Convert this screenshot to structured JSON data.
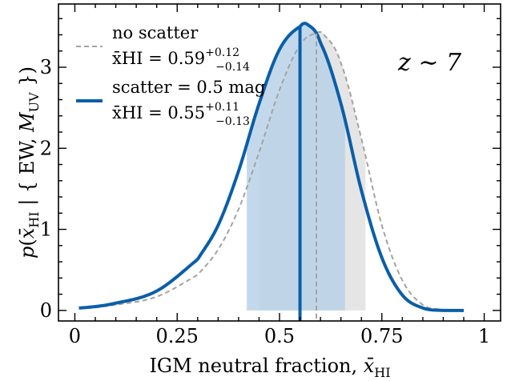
{
  "chart_data": {
    "type": "line",
    "xlabel": "IGM neutral fraction, x̄HI",
    "ylabel": "p(x̄HI | { EW, MUV })",
    "xlim": [
      -0.04,
      1.04
    ],
    "ylim": [
      -0.13,
      3.78
    ],
    "xticks": [
      0,
      0.25,
      0.5,
      0.75,
      1
    ],
    "xtick_labels": [
      "0",
      "0.25",
      "0.5",
      "0.75",
      "1"
    ],
    "yticks": [
      0,
      1,
      2,
      3
    ],
    "ytick_labels": [
      "0",
      "1",
      "2",
      "3"
    ],
    "annotation": "z ∼ 7",
    "legend_position": "top-left",
    "series": [
      {
        "name": "no scatter",
        "style": "dashed",
        "color": "#a3a3a3",
        "x": [
          0.01,
          0.1,
          0.2,
          0.3,
          0.35,
          0.4,
          0.45,
          0.5,
          0.55,
          0.59,
          0.61,
          0.65,
          0.7,
          0.75,
          0.8,
          0.85,
          0.9,
          0.95
        ],
        "y": [
          0.02,
          0.07,
          0.17,
          0.44,
          0.75,
          1.25,
          1.95,
          2.72,
          3.27,
          3.42,
          3.39,
          3.05,
          2.12,
          1.05,
          0.37,
          0.07,
          0.01,
          0.0
        ],
        "median": 0.59,
        "median_label": "x̄HI = 0.59",
        "err_plus": "+0.12",
        "err_minus": "−0.14",
        "interval": [
          0.45,
          0.71
        ],
        "fill_color": "#e5e5e5"
      },
      {
        "name": "scatter = 0.5 mag",
        "style": "solid",
        "color": "#0b5ea8",
        "x": [
          0.01,
          0.1,
          0.2,
          0.3,
          0.35,
          0.4,
          0.45,
          0.5,
          0.55,
          0.57,
          0.6,
          0.65,
          0.7,
          0.75,
          0.8,
          0.85,
          0.9,
          0.95
        ],
        "y": [
          0.03,
          0.09,
          0.24,
          0.63,
          1.05,
          1.72,
          2.55,
          3.22,
          3.5,
          3.52,
          3.3,
          2.55,
          1.48,
          0.65,
          0.19,
          0.03,
          0.0,
          0.0
        ],
        "median": 0.55,
        "median_label": "x̄HI = 0.55",
        "err_plus": "+0.11",
        "err_minus": "−0.13",
        "interval": [
          0.42,
          0.66
        ],
        "fill_color": "#b9d2e8"
      }
    ]
  }
}
